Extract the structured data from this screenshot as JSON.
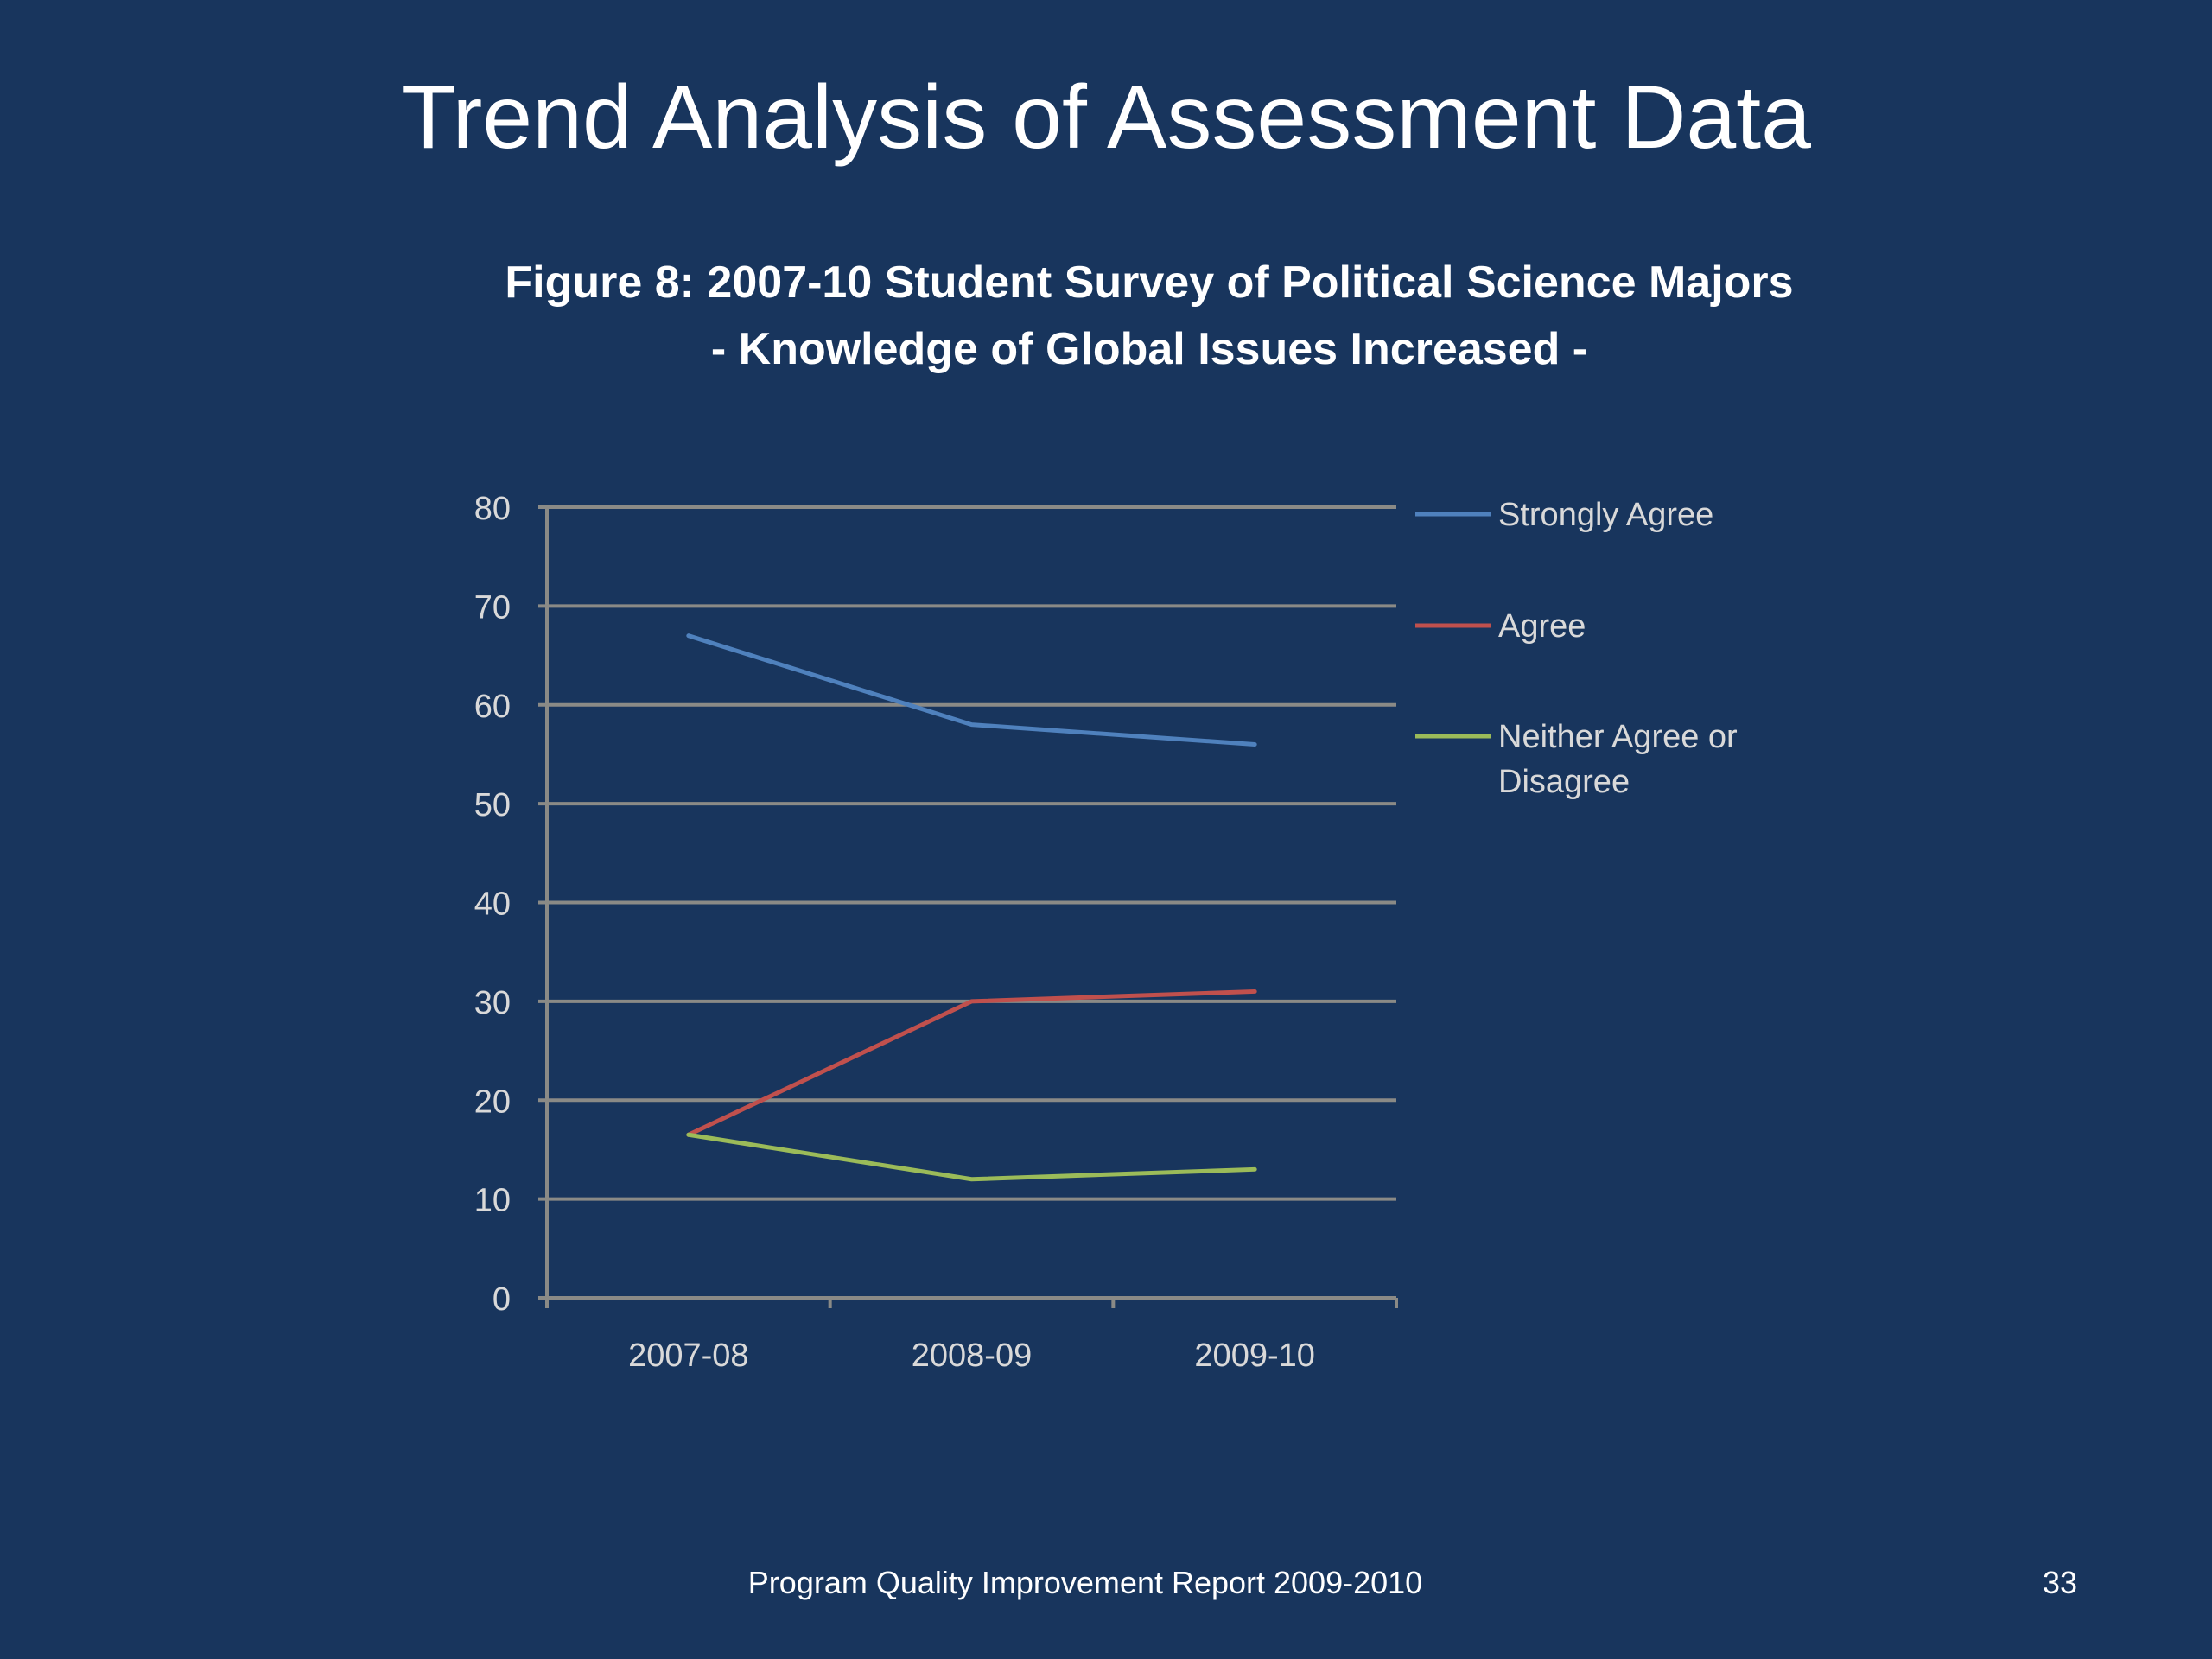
{
  "slide": {
    "title": "Trend Analysis of Assessment Data",
    "footer": "Program Quality Improvement Report 2009-2010",
    "page_number": "33",
    "background": "#18355d"
  },
  "chart_data": {
    "type": "line",
    "title": "Figure 8: 2007-10 Student Survey of Political Science Majors",
    "subtitle": "- Knowledge of Global Issues Increased -",
    "categories": [
      "2007-08",
      "2008-09",
      "2009-10"
    ],
    "series": [
      {
        "name": "Strongly Agree",
        "values": [
          67,
          58,
          56
        ],
        "color": "#4f81bd"
      },
      {
        "name": "Agree",
        "values": [
          16.5,
          30,
          31
        ],
        "color": "#c0504d"
      },
      {
        "name": "Neither Agree or Disagree",
        "values": [
          16.5,
          12,
          13
        ],
        "color": "#9bbb59"
      }
    ],
    "ylim": [
      0,
      80
    ],
    "yticks": [
      0,
      10,
      20,
      30,
      40,
      50,
      60,
      70,
      80
    ],
    "grid": true,
    "legend_position": "right",
    "xlabel": "",
    "ylabel": ""
  }
}
